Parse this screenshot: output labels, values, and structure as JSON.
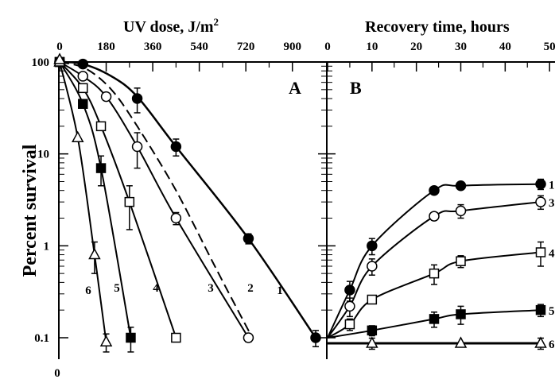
{
  "chart_data": [
    {
      "panel": "A",
      "type": "line",
      "panel_label": "A",
      "xlabel": "UV dose, J/m",
      "xlabel_sup": "2",
      "ylabel": "Percent survival",
      "x_ticks": [
        "0",
        "180",
        "360",
        "540",
        "720",
        "900"
      ],
      "y_ticks": [
        "100",
        "10",
        "1",
        "0.1"
      ],
      "y_zero_label": "0",
      "xlim": [
        0,
        1000
      ],
      "ylim": [
        0.1,
        100
      ],
      "y_scale": "log",
      "grid": false,
      "series": [
        {
          "name": "1",
          "marker": "filled-circle",
          "dash": false,
          "points": [
            [
              0,
              100
            ],
            [
              90,
              95
            ],
            [
              300,
              40
            ],
            [
              450,
              12
            ],
            [
              730,
              1.2
            ],
            [
              990,
              0.1
            ]
          ],
          "errors": [
            0,
            0,
            12,
            2.5,
            0.15,
            0.02
          ],
          "curve": [
            [
              0,
              100
            ],
            [
              90,
              95
            ],
            [
              200,
              70
            ],
            [
              300,
              42
            ],
            [
              450,
              12
            ],
            [
              730,
              1.2
            ],
            [
              990,
              0.1
            ]
          ]
        },
        {
          "name": "2",
          "marker": "none",
          "dash": true,
          "points": [],
          "curve": [
            [
              0,
              100
            ],
            [
              100,
              85
            ],
            [
              200,
              50
            ],
            [
              300,
              20
            ],
            [
              450,
              4
            ],
            [
              600,
              0.6
            ],
            [
              745,
              0.1
            ]
          ]
        },
        {
          "name": "3",
          "marker": "open-circle",
          "dash": false,
          "points": [
            [
              0,
              100
            ],
            [
              90,
              70
            ],
            [
              180,
              42
            ],
            [
              300,
              12
            ],
            [
              450,
              2
            ],
            [
              730,
              0.1
            ]
          ],
          "errors": [
            0,
            0,
            0,
            5,
            0.3,
            0.01
          ],
          "curve": [
            [
              0,
              100
            ],
            [
              90,
              70
            ],
            [
              180,
              42
            ],
            [
              300,
              12
            ],
            [
              450,
              2
            ],
            [
              730,
              0.1
            ]
          ]
        },
        {
          "name": "4",
          "marker": "open-square",
          "dash": false,
          "points": [
            [
              0,
              100
            ],
            [
              90,
              52
            ],
            [
              160,
              20
            ],
            [
              270,
              3
            ],
            [
              450,
              0.1
            ]
          ],
          "errors": [
            0,
            0,
            0,
            1.5,
            0.01
          ],
          "curve": [
            [
              0,
              100
            ],
            [
              90,
              52
            ],
            [
              160,
              20
            ],
            [
              270,
              3
            ],
            [
              450,
              0.1
            ]
          ]
        },
        {
          "name": "5",
          "marker": "filled-square",
          "dash": false,
          "points": [
            [
              0,
              100
            ],
            [
              90,
              35
            ],
            [
              160,
              7
            ],
            [
              275,
              0.1
            ]
          ],
          "errors": [
            0,
            0,
            2.5,
            0.03
          ],
          "curve": [
            [
              0,
              100
            ],
            [
              90,
              35
            ],
            [
              160,
              7
            ],
            [
              275,
              0.1
            ]
          ]
        },
        {
          "name": "6",
          "marker": "open-triangle",
          "dash": false,
          "points": [
            [
              0,
              100
            ],
            [
              70,
              15
            ],
            [
              135,
              0.8
            ],
            [
              180,
              0.09
            ]
          ],
          "errors": [
            0,
            0,
            0.3,
            0.02
          ],
          "curve": [
            [
              0,
              100
            ],
            [
              70,
              15
            ],
            [
              135,
              0.8
            ],
            [
              180,
              0.09
            ]
          ]
        }
      ]
    },
    {
      "panel": "B",
      "type": "line",
      "panel_label": "B",
      "xlabel": "Recovery time, hours",
      "x_ticks": [
        "0",
        "10",
        "20",
        "30",
        "40",
        "50"
      ],
      "xlim": [
        0,
        50
      ],
      "ylim": [
        0.1,
        100
      ],
      "y_scale": "log",
      "grid": false,
      "series": [
        {
          "name": "1",
          "marker": "filled-circle",
          "points": [
            [
              0,
              0.1
            ],
            [
              5,
              0.33
            ],
            [
              10,
              1.0
            ],
            [
              24,
              4.0
            ],
            [
              30,
              4.5
            ],
            [
              48,
              4.7
            ]
          ],
          "errors": [
            0,
            0.08,
            0.2,
            0,
            0,
            0.6
          ]
        },
        {
          "name": "3",
          "marker": "open-circle",
          "points": [
            [
              0,
              0.1
            ],
            [
              5,
              0.22
            ],
            [
              10,
              0.6
            ],
            [
              24,
              2.1
            ],
            [
              30,
              2.4
            ],
            [
              48,
              3.0
            ]
          ],
          "errors": [
            0,
            0.05,
            0.12,
            0.2,
            0.4,
            0.5
          ]
        },
        {
          "name": "4",
          "marker": "open-square",
          "points": [
            [
              0,
              0.1
            ],
            [
              5,
              0.14
            ],
            [
              10,
              0.26
            ],
            [
              24,
              0.5
            ],
            [
              30,
              0.68
            ],
            [
              48,
              0.85
            ]
          ],
          "errors": [
            0,
            0.02,
            0,
            0.12,
            0.1,
            0.25
          ]
        },
        {
          "name": "5",
          "marker": "filled-square",
          "points": [
            [
              0,
              0.1
            ],
            [
              10,
              0.12
            ],
            [
              24,
              0.16
            ],
            [
              30,
              0.18
            ],
            [
              48,
              0.2
            ]
          ],
          "errors": [
            0,
            0.015,
            0.03,
            0.04,
            0.03
          ]
        },
        {
          "name": "6",
          "marker": "open-triangle",
          "points": [
            [
              0,
              0.087
            ],
            [
              10,
              0.087
            ],
            [
              30,
              0.087
            ],
            [
              48,
              0.087
            ]
          ],
          "errors": [
            0,
            0.012,
            0,
            0.012
          ]
        }
      ]
    }
  ]
}
